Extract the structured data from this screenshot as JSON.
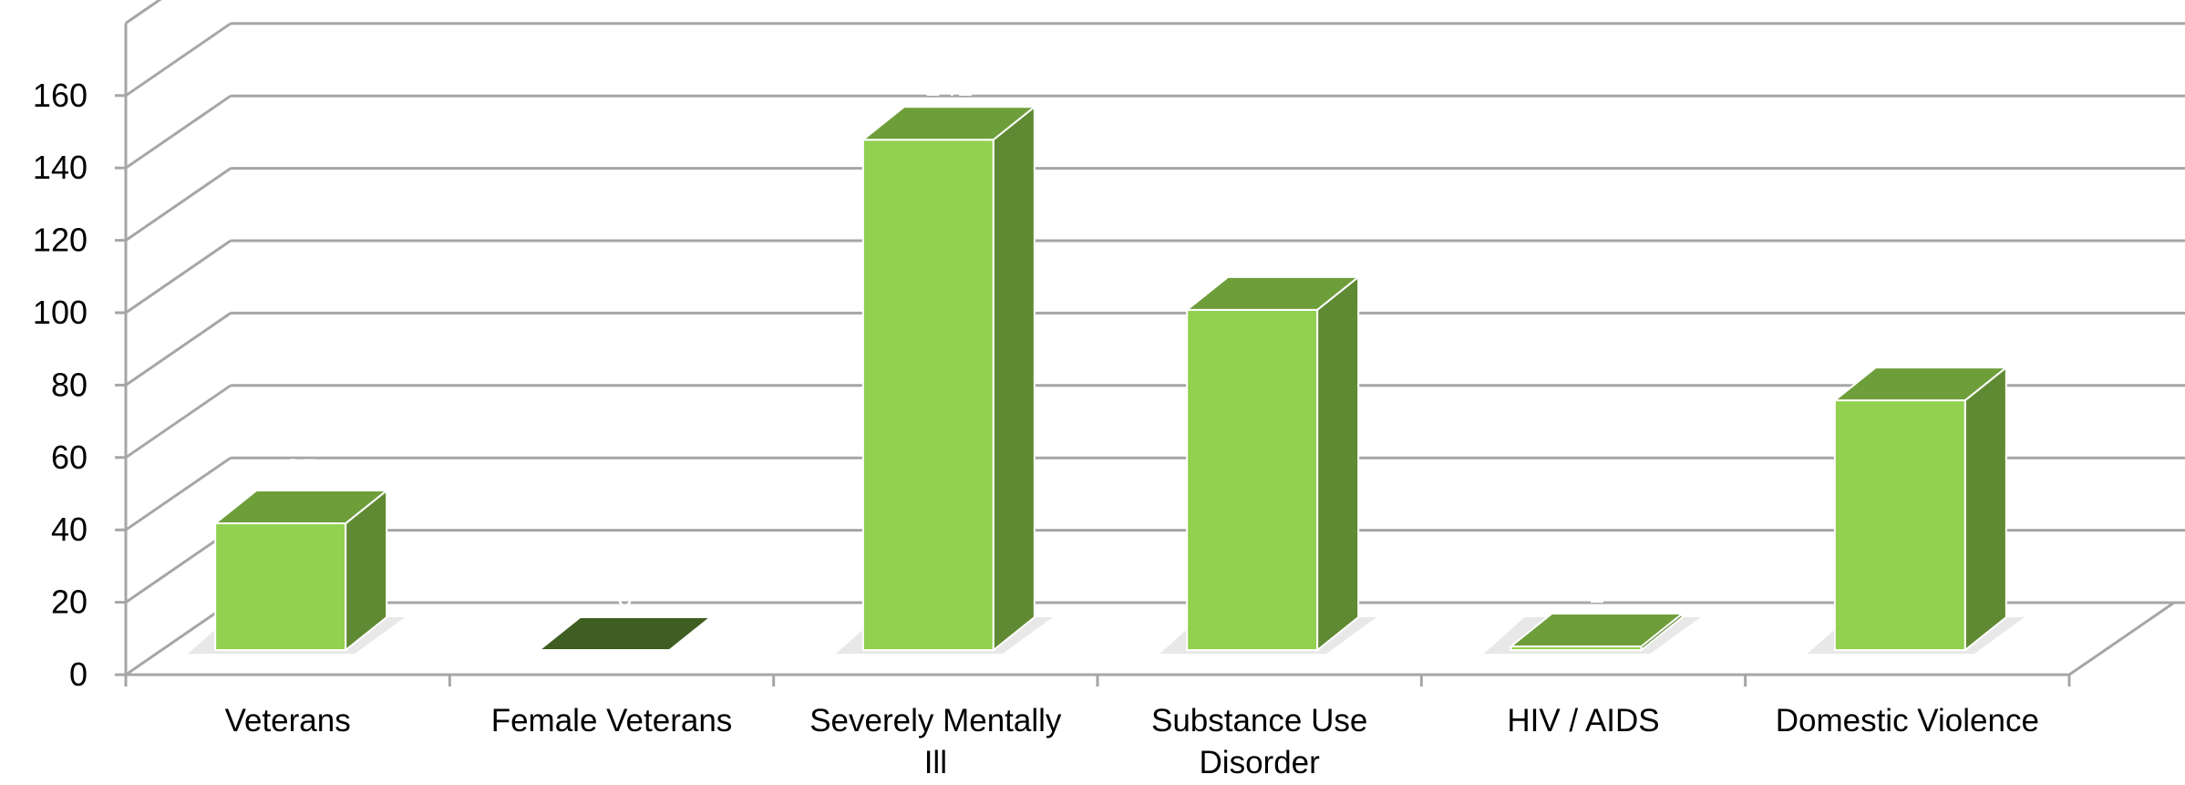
{
  "chart_data": {
    "type": "bar",
    "style": "3d-column",
    "categories": [
      "Veterans",
      "Female Veterans",
      "Severely Mentally Ill",
      "Substance Use Disorder",
      "HIV / AIDS",
      "Domestic Violence"
    ],
    "category_label_lines": [
      [
        "Veterans"
      ],
      [
        "Female Veterans"
      ],
      [
        "Severely Mentally",
        "Ill"
      ],
      [
        "Substance Use",
        "Disorder"
      ],
      [
        "HIV / AIDS"
      ],
      [
        "Domestic Violence"
      ]
    ],
    "series": [
      {
        "values": [
          35,
          0,
          141,
          94,
          1,
          69
        ]
      }
    ],
    "data_labels": [
      "35",
      "0",
      "141",
      "94",
      "1",
      "69"
    ],
    "title": "",
    "xlabel": "",
    "ylabel": "",
    "ylim": [
      0,
      160
    ],
    "y_ticks": [
      0,
      20,
      40,
      60,
      80,
      100,
      120,
      140,
      160
    ],
    "grid": true,
    "legend": "none",
    "colors": {
      "bar_front": "#92D050",
      "bar_top": "#6E9E3A",
      "bar_side": "#5F8A33",
      "zero_bar": "#3F5E22",
      "gridline": "#A6A6A6",
      "axis_text": "#000000",
      "data_label": "#FFFFFF"
    }
  }
}
